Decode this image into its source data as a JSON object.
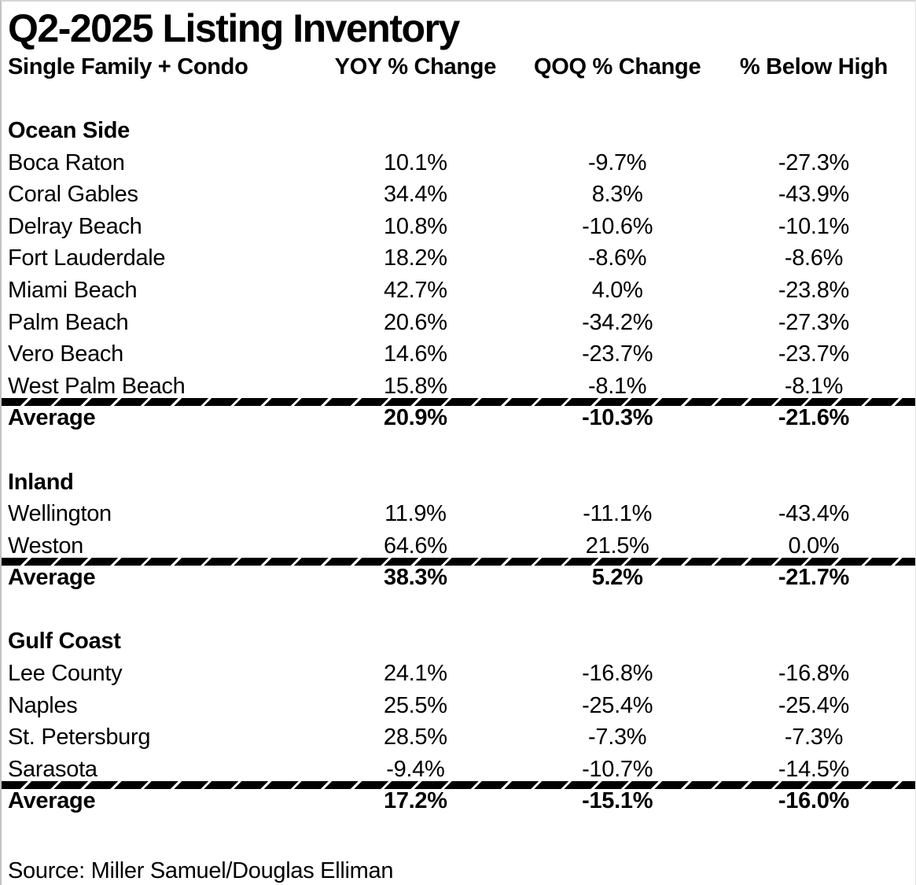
{
  "chart_data": {
    "type": "table",
    "title": "Q2-2025 Listing Inventory",
    "columns": [
      "Single Family + Condo",
      "YOY % Change",
      "QOQ % Change",
      "% Below High"
    ],
    "sections": [
      {
        "name": "Ocean Side",
        "rows": [
          [
            "Boca Raton",
            "10.1%",
            "-9.7%",
            "-27.3%"
          ],
          [
            "Coral Gables",
            "34.4%",
            "8.3%",
            "-43.9%"
          ],
          [
            "Delray Beach",
            "10.8%",
            "-10.6%",
            "-10.1%"
          ],
          [
            "Fort Lauderdale",
            "18.2%",
            "-8.6%",
            "-8.6%"
          ],
          [
            "Miami Beach",
            "42.7%",
            "4.0%",
            "-23.8%"
          ],
          [
            "Palm Beach",
            "20.6%",
            "-34.2%",
            "-27.3%"
          ],
          [
            "Vero Beach",
            "14.6%",
            "-23.7%",
            "-23.7%"
          ],
          [
            "West Palm Beach",
            "15.8%",
            "-8.1%",
            "-8.1%"
          ]
        ],
        "average": [
          "Average",
          "20.9%",
          "-10.3%",
          "-21.6%"
        ]
      },
      {
        "name": "Inland",
        "rows": [
          [
            "Wellington",
            "11.9%",
            "-11.1%",
            "-43.4%"
          ],
          [
            "Weston",
            "64.6%",
            "21.5%",
            "0.0%"
          ]
        ],
        "average": [
          "Average",
          "38.3%",
          "5.2%",
          "-21.7%"
        ]
      },
      {
        "name": "Gulf Coast",
        "rows": [
          [
            "Lee County",
            "24.1%",
            "-16.8%",
            "-16.8%"
          ],
          [
            "Naples",
            "25.5%",
            "-25.4%",
            "-25.4%"
          ],
          [
            "St. Petersburg",
            "28.5%",
            "-7.3%",
            "-7.3%"
          ],
          [
            "Sarasota",
            "-9.4%",
            "-10.7%",
            "-14.5%"
          ]
        ],
        "average": [
          "Average",
          "17.2%",
          "-15.1%",
          "-16.0%"
        ]
      }
    ],
    "source": "Source: Miller Samuel/Douglas Elliman",
    "layout": {
      "grid": "off",
      "text_color": "#000000",
      "background": "#ffffff",
      "divider_style": "thick-black-slashed-band"
    }
  }
}
